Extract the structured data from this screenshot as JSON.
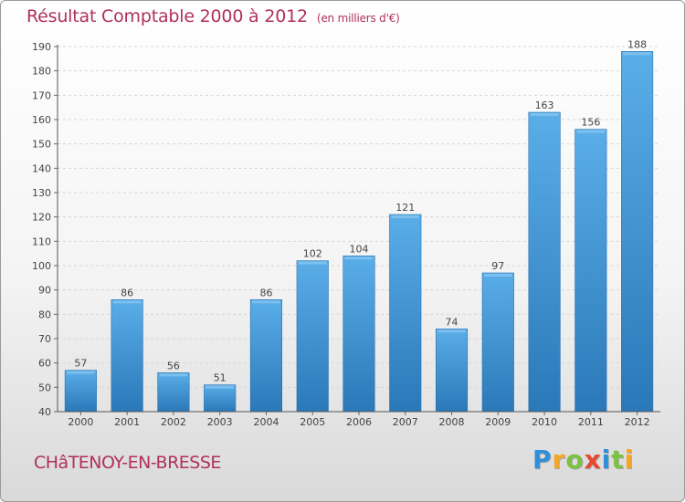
{
  "chart_data": {
    "type": "bar",
    "title": "Résultat Comptable 2000 à 2012",
    "subtitle": "(en milliers d'€)",
    "categories": [
      "2000",
      "2001",
      "2002",
      "2003",
      "2004",
      "2005",
      "2006",
      "2007",
      "2008",
      "2009",
      "2010",
      "2011",
      "2012"
    ],
    "values": [
      57,
      86,
      56,
      51,
      86,
      102,
      104,
      121,
      74,
      97,
      163,
      156,
      188
    ],
    "ylim": [
      40,
      190
    ],
    "yticks": [
      40,
      50,
      60,
      70,
      80,
      90,
      100,
      110,
      120,
      130,
      140,
      150,
      160,
      170,
      180,
      190
    ],
    "xlabel": "",
    "ylabel": "",
    "grid": true,
    "bar_color": "#4a9ad8"
  },
  "footer": {
    "commune": "CHâTENOY-EN-BRESSE",
    "brand_letters": [
      {
        "ch": "P",
        "color": "#2f8fd8"
      },
      {
        "ch": "r",
        "color": "#f5a623"
      },
      {
        "ch": "o",
        "color": "#7cc242"
      },
      {
        "ch": "x",
        "color": "#e8492f"
      },
      {
        "ch": "i",
        "color": "#2f8fd8"
      },
      {
        "ch": "t",
        "color": "#7cc242"
      },
      {
        "ch": "i",
        "color": "#f5a623"
      }
    ]
  }
}
